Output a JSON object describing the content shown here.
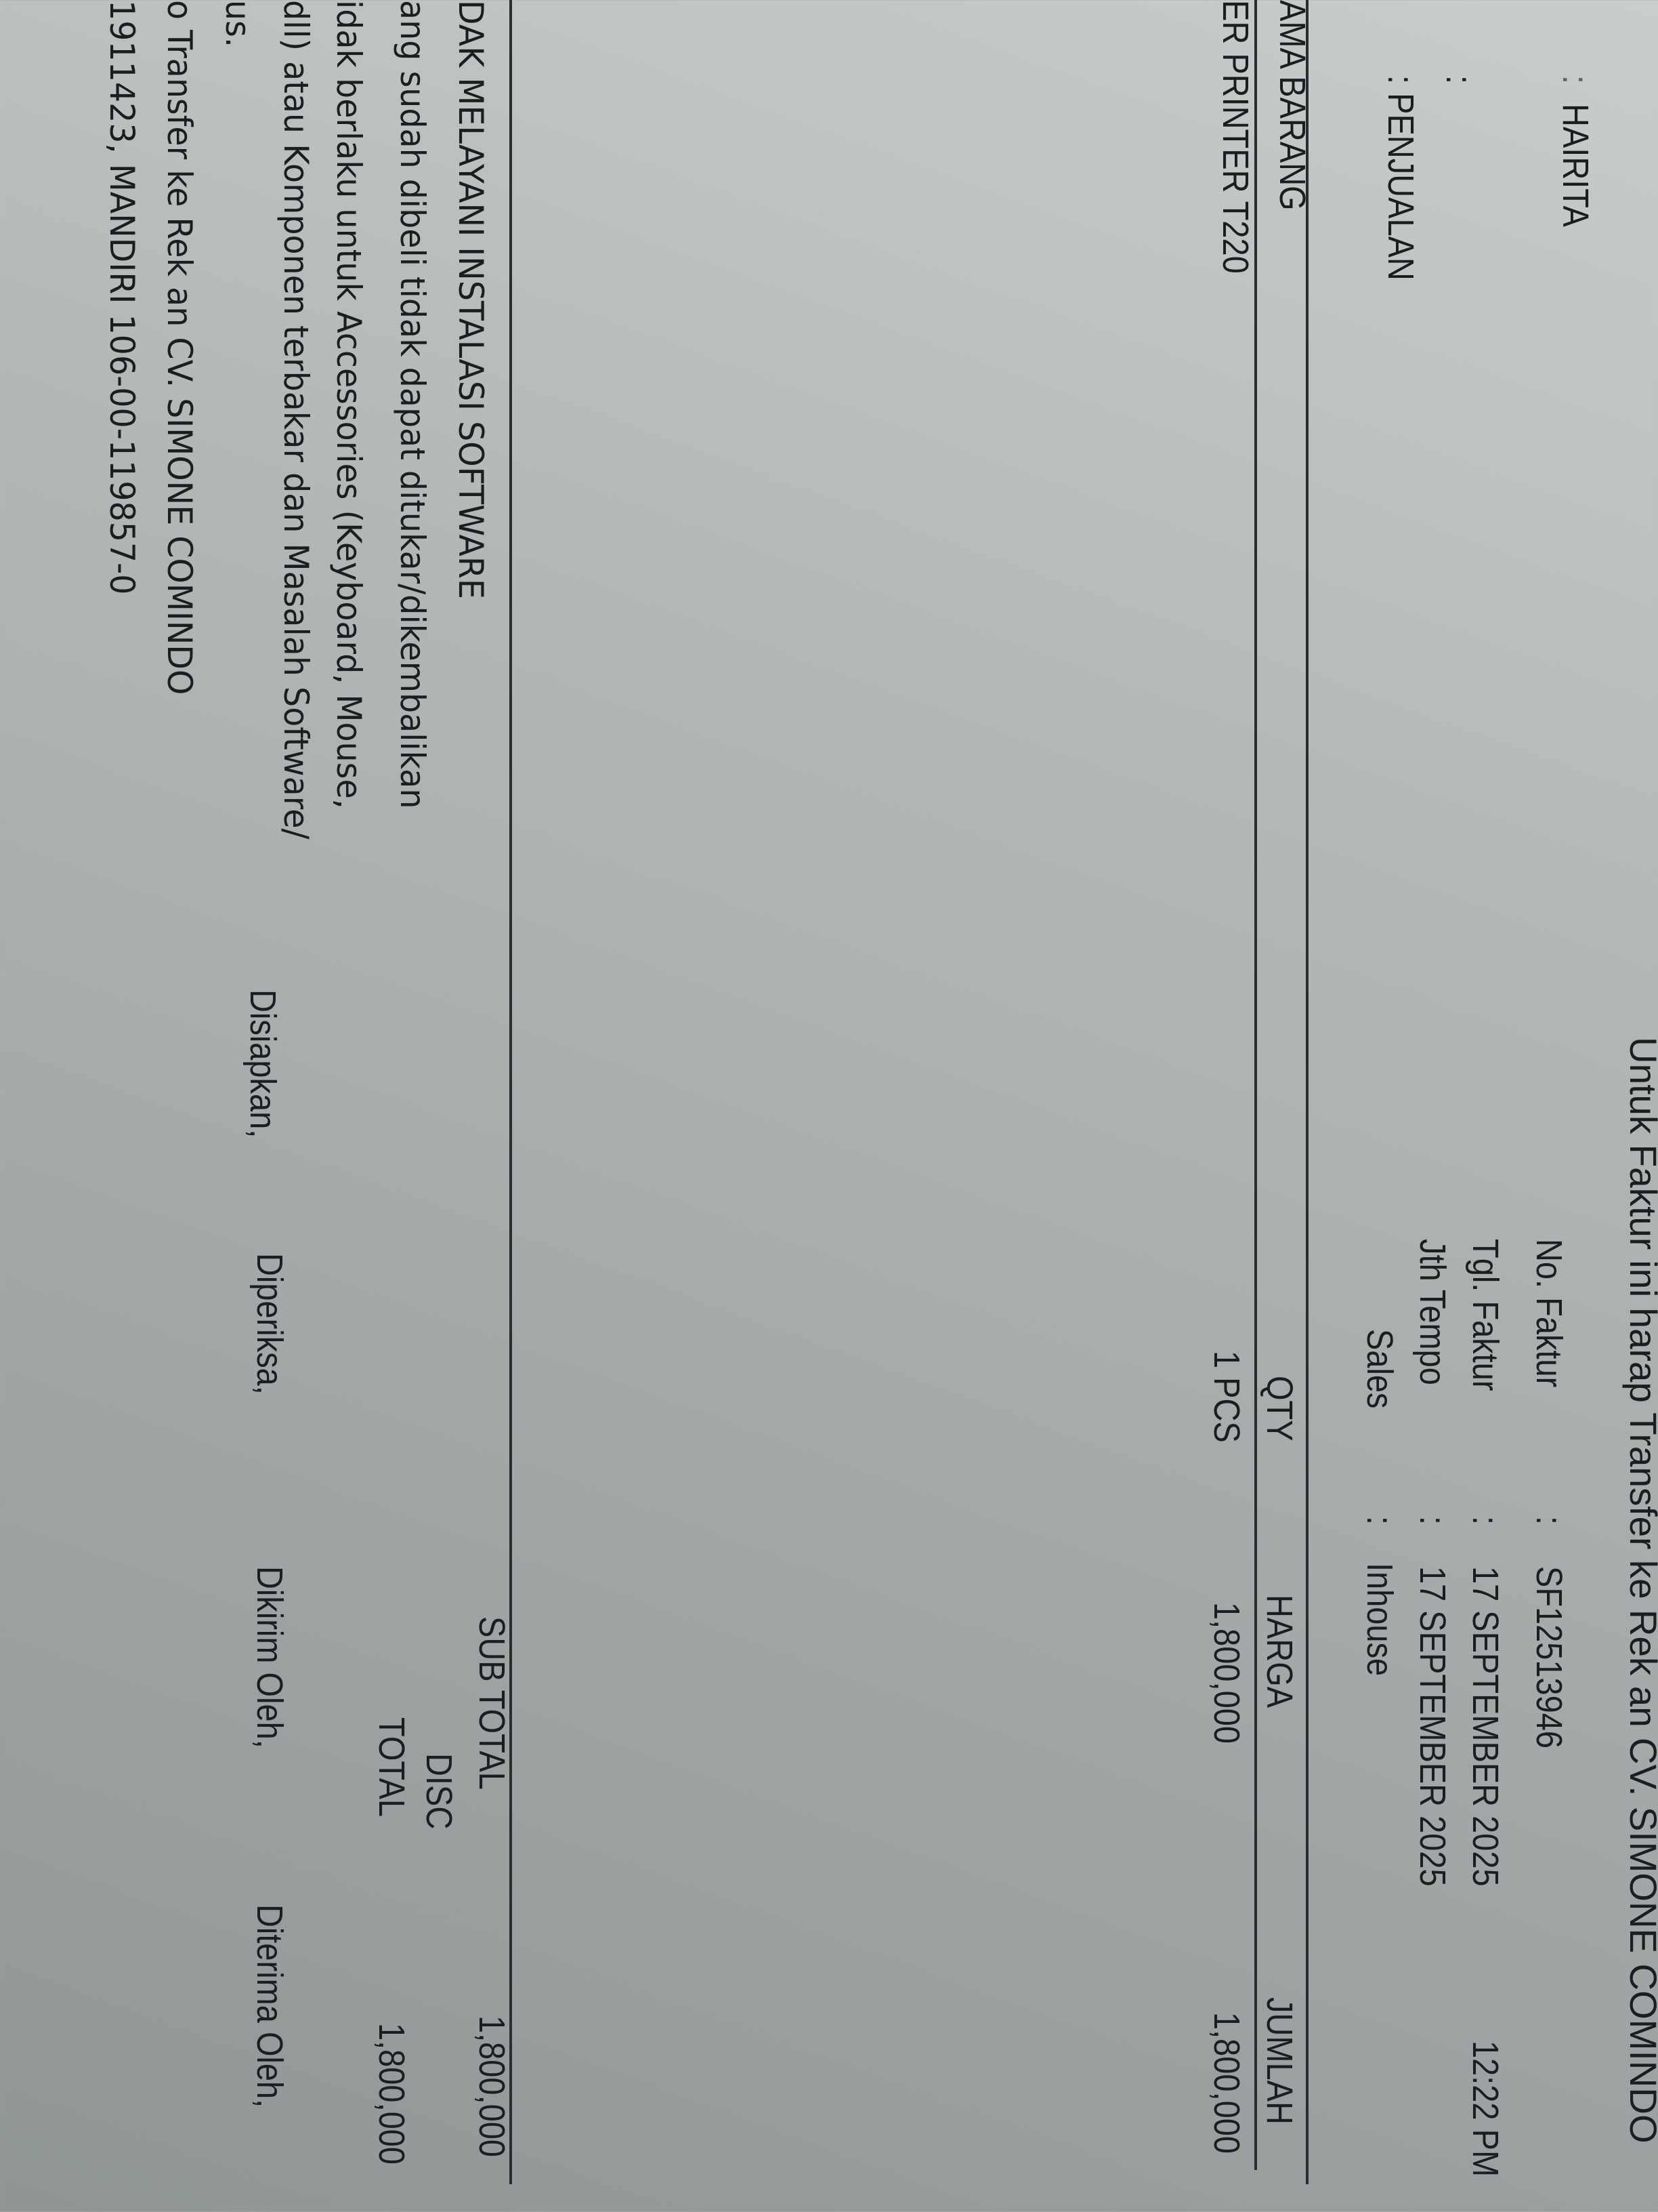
{
  "notice": "Untuk Faktur ini harap Transfer ke Rek an CV. SIMONE COMINDO",
  "customer": {
    "name_colon": ":",
    "name": "HAIRITA",
    "blank_colon": ":",
    "type": ": PENJUALAN"
  },
  "invoice": {
    "no_label": "No. Faktur",
    "no_value": "SF12513946",
    "date_label": "Tgl. Faktur",
    "date_value": "17 SEPTEMBER 2025",
    "time": "12:22 PM",
    "due_label": "Jth Tempo",
    "due_value": "17 SEPTEMBER 2025",
    "sales_label": "Sales",
    "sales_value": "Inhouse",
    "colon": ":"
  },
  "table": {
    "headers": {
      "name": "AMA BARANG",
      "qty": "QTY",
      "price": "HARGA",
      "amount": "JUMLAH"
    },
    "rows": [
      {
        "name": "ER PRINTER T220",
        "qty": "1 PCS",
        "price": "1,800,000",
        "amount": "1,800,000"
      }
    ]
  },
  "totals": {
    "subtotal_label": "SUB TOTAL",
    "subtotal": "1,800,000",
    "disc_label": "DISC",
    "total_label": "TOTAL",
    "total": "1,800,000"
  },
  "notes": [
    "DAK MELAYANI INSTALASI SOFTWARE",
    "ang sudah dibeli tidak dapat ditukar/dikembalikan",
    "idak berlaku untuk Accessories (Keyboard, Mouse,",
    "dll) atau Komponen terbakar dan Masalah Software/",
    "us.",
    "o Transfer ke Rek an CV. SIMONE COMINDO",
    "1911423, MANDIRI 106-00-119857-0"
  ],
  "signatures": {
    "prepared": "Disiapkan,",
    "checked": "Diperiksa,",
    "sent": "Dikirim Oleh,",
    "received": "Diterima Oleh,"
  },
  "colors": {
    "paper": "#a9afae",
    "ink": "#1b1e20"
  }
}
